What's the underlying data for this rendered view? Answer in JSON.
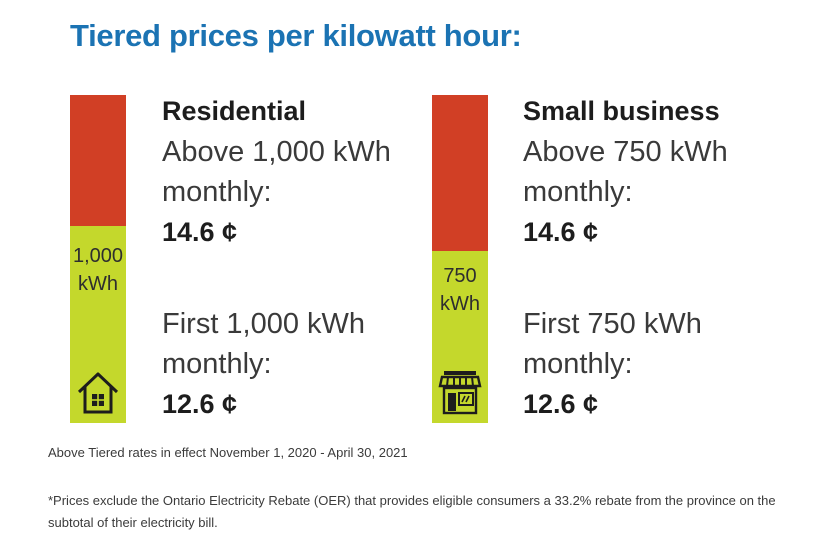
{
  "title": "Tiered prices per kilowatt hour:",
  "residential": {
    "segment": "Residential",
    "threshold": [
      "1,000",
      "kWh"
    ],
    "upper_tier": {
      "label": [
        "Above 1,000 kWh",
        "monthly:"
      ],
      "price": "14.6 ¢"
    },
    "lower_tier": {
      "label": [
        "First 1,000 kWh",
        "monthly:"
      ],
      "price": "12.6 ¢"
    },
    "icon": "house-icon"
  },
  "small_business": {
    "segment": "Small business",
    "threshold": [
      "750",
      "kWh"
    ],
    "upper_tier": {
      "label": [
        "Above 750 kWh",
        "monthly:"
      ],
      "price": "14.6 ¢"
    },
    "lower_tier": {
      "label": [
        "First 750 kWh",
        "monthly:"
      ],
      "price": "12.6 ¢"
    },
    "icon": "storefront-icon"
  },
  "colors": {
    "title": "#1b73b3",
    "upper_tier": "#d13f25",
    "lower_tier": "#c4d82c"
  },
  "rates_note": "Above Tiered rates in effect November 1, 2020 - April 30, 2021",
  "footnote": "*Prices exclude the Ontario Electricity Rebate (OER) that provides eligible consumers a 33.2% rebate from the province on the  subtotal of their electricity bill."
}
